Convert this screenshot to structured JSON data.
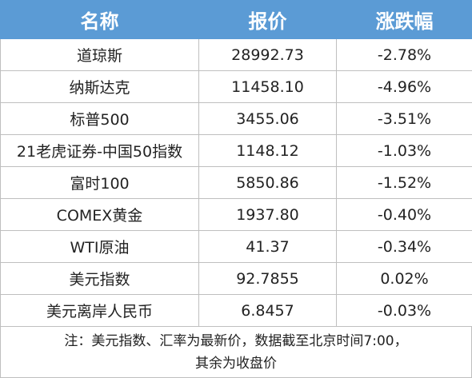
{
  "table": {
    "header": [
      "名称",
      "报价",
      "涨跌幅"
    ],
    "rows": [
      [
        "道琼斯",
        "28992.73",
        "-2.78%"
      ],
      [
        "纳斯达克",
        "11458.10",
        "-4.96%"
      ],
      [
        "标普500",
        "3455.06",
        "-3.51%"
      ],
      [
        "21老虎证券-中国50指数",
        "1148.12",
        "-1.03%"
      ],
      [
        "富时100",
        "5850.86",
        "-1.52%"
      ],
      [
        "COMEX黄金",
        "1937.80",
        "-0.40%"
      ],
      [
        "WTI原油",
        "41.37",
        "-0.34%"
      ],
      [
        "美元指数",
        "92.7855",
        "0.02%"
      ],
      [
        "美元离岸人民币",
        "6.8457",
        "-0.03%"
      ]
    ],
    "note": [
      "注：美元指数、汇率为最新价，数据截至北京时间7:00，",
      "其余为收盘价"
    ]
  }
}
